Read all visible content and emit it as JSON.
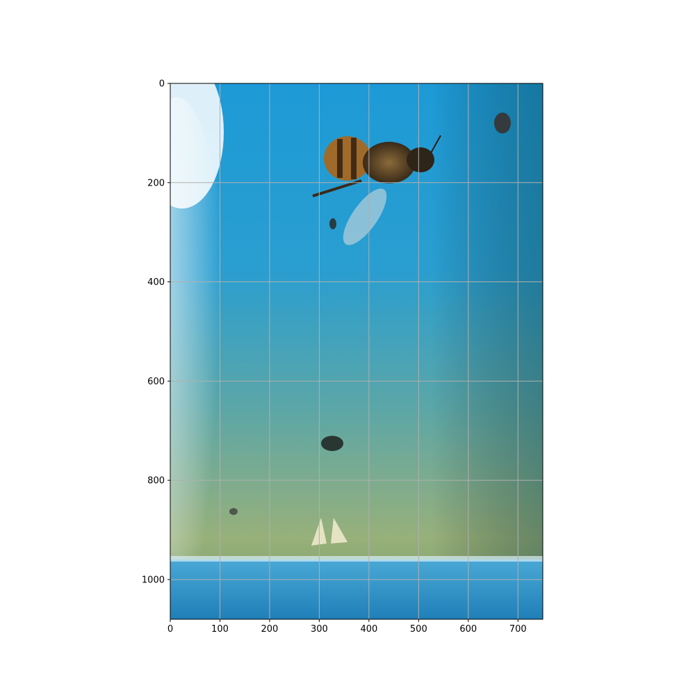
{
  "chart_data": {
    "type": "image",
    "title": "",
    "xlabel": "",
    "ylabel": "",
    "image_width": 750,
    "image_height": 1080,
    "xlim": [
      0,
      750
    ],
    "ylim": [
      1080,
      0
    ],
    "grid": true,
    "x_ticks": [
      0,
      100,
      200,
      300,
      400,
      500,
      600,
      700
    ],
    "y_ticks": [
      0,
      200,
      400,
      600,
      800,
      1000
    ],
    "content": "photo of a honey bee and small insects on a blue-to-green surface"
  },
  "colors": {
    "grid": "#b0b0b0",
    "water_top": "#1e9bd8",
    "water_mid": "#3a9fc0",
    "water_bottom": "#8fae72",
    "glare": "#f4f8f8",
    "ledge": "#2a92c8"
  }
}
